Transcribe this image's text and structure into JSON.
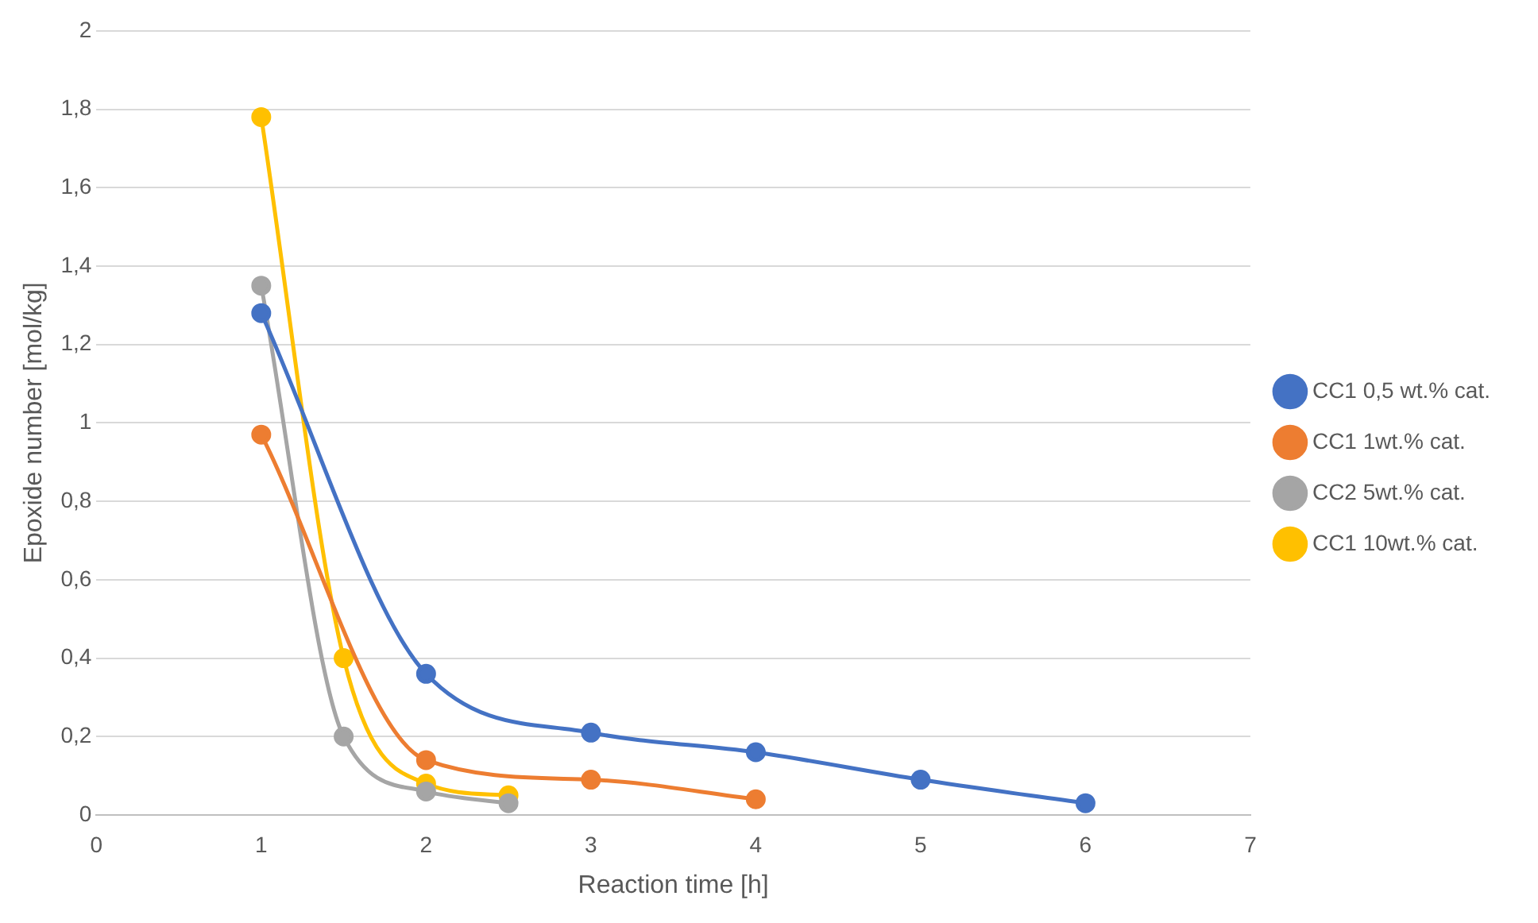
{
  "chart_data": {
    "type": "line",
    "xlabel": "Reaction time [h]",
    "ylabel": "Epoxide number [mol/kg]",
    "xlim": [
      0,
      7
    ],
    "xticks": [
      0,
      1,
      2,
      3,
      4,
      5,
      6,
      7
    ],
    "ylim": [
      0,
      2
    ],
    "yticks": [
      0,
      {
        "value": 0.2,
        "label": "0,2"
      },
      {
        "value": 0.4,
        "label": "0,4"
      },
      {
        "value": 0.6,
        "label": "0,6"
      },
      {
        "value": 0.8,
        "label": "0,8"
      },
      1,
      {
        "value": 1.2,
        "label": "1,2"
      },
      {
        "value": 1.4,
        "label": "1,4"
      },
      {
        "value": 1.6,
        "label": "1,6"
      },
      {
        "value": 1.8,
        "label": "1,8"
      },
      2
    ],
    "grid": "y",
    "legend": "right",
    "marker": "circle",
    "line_style": "solid",
    "series": [
      {
        "name": "CC1 0,5 wt.% cat.",
        "color": "#4472c4",
        "x": [
          1,
          2,
          3,
          4,
          5,
          6
        ],
        "values": [
          1.28,
          0.36,
          0.21,
          0.16,
          0.09,
          0.03
        ]
      },
      {
        "name": "CC1 1wt.% cat.",
        "color": "#ed7d31",
        "x": [
          1,
          2,
          3,
          4
        ],
        "values": [
          0.97,
          0.14,
          0.09,
          0.04
        ]
      },
      {
        "name": "CC2 5wt.% cat.",
        "color": "#a5a5a5",
        "x": [
          1,
          1.5,
          2,
          2.5
        ],
        "values": [
          1.35,
          0.2,
          0.06,
          0.03
        ]
      },
      {
        "name": "CC1 10wt.% cat.",
        "color": "#ffc000",
        "x": [
          1,
          1.5,
          2,
          2.5
        ],
        "values": [
          1.78,
          0.4,
          0.08,
          0.05
        ]
      }
    ]
  }
}
